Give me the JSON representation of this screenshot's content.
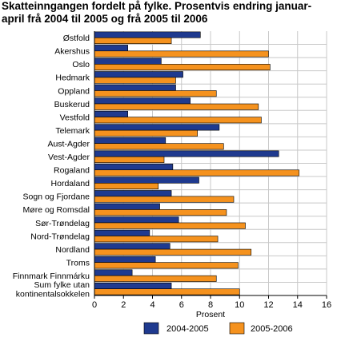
{
  "title_lines": [
    "Skatteinngangen fordelt på fylke. Prosentvis endring januar-",
    "april frå 2004 til 2005 og frå 2005 til 2006"
  ],
  "chart_data": {
    "type": "bar",
    "orientation": "horizontal",
    "categories": [
      [
        "Østfold"
      ],
      [
        "Akershus"
      ],
      [
        "Oslo"
      ],
      [
        "Hedmark"
      ],
      [
        "Oppland"
      ],
      [
        "Buskerud"
      ],
      [
        "Vestfold"
      ],
      [
        "Telemark"
      ],
      [
        "Aust-Agder"
      ],
      [
        "Vest-Agder"
      ],
      [
        "Rogaland"
      ],
      [
        "Hordaland"
      ],
      [
        "Sogn og Fjordane"
      ],
      [
        "Møre og Romsdal"
      ],
      [
        "Sør-Trøndelag"
      ],
      [
        "Nord-Trøndelag"
      ],
      [
        "Nordland"
      ],
      [
        "Troms"
      ],
      [
        "Finnmark Finnmárku"
      ],
      [
        "Sum fylke utan",
        "kontinentalsokkelen"
      ]
    ],
    "series": [
      {
        "name": "2004-2005",
        "color": "#1f3a8f",
        "values": [
          7.3,
          2.3,
          4.6,
          6.1,
          5.6,
          6.6,
          2.3,
          8.6,
          4.9,
          12.7,
          5.4,
          7.2,
          5.3,
          4.5,
          5.8,
          3.8,
          5.2,
          4.2,
          2.6,
          5.3
        ]
      },
      {
        "name": "2005-2006",
        "color": "#f5921e",
        "values": [
          5.3,
          12.0,
          12.1,
          5.6,
          8.4,
          11.3,
          11.5,
          7.1,
          8.9,
          4.8,
          14.1,
          4.4,
          9.6,
          9.1,
          10.4,
          8.5,
          10.8,
          9.9,
          8.4,
          10.0
        ]
      }
    ],
    "xlabel": "Prosent",
    "xlim": [
      0,
      16
    ],
    "xticks": [
      0,
      2,
      4,
      6,
      8,
      10,
      12,
      14,
      16
    ],
    "grid": "vertical",
    "legend": "bottom"
  }
}
